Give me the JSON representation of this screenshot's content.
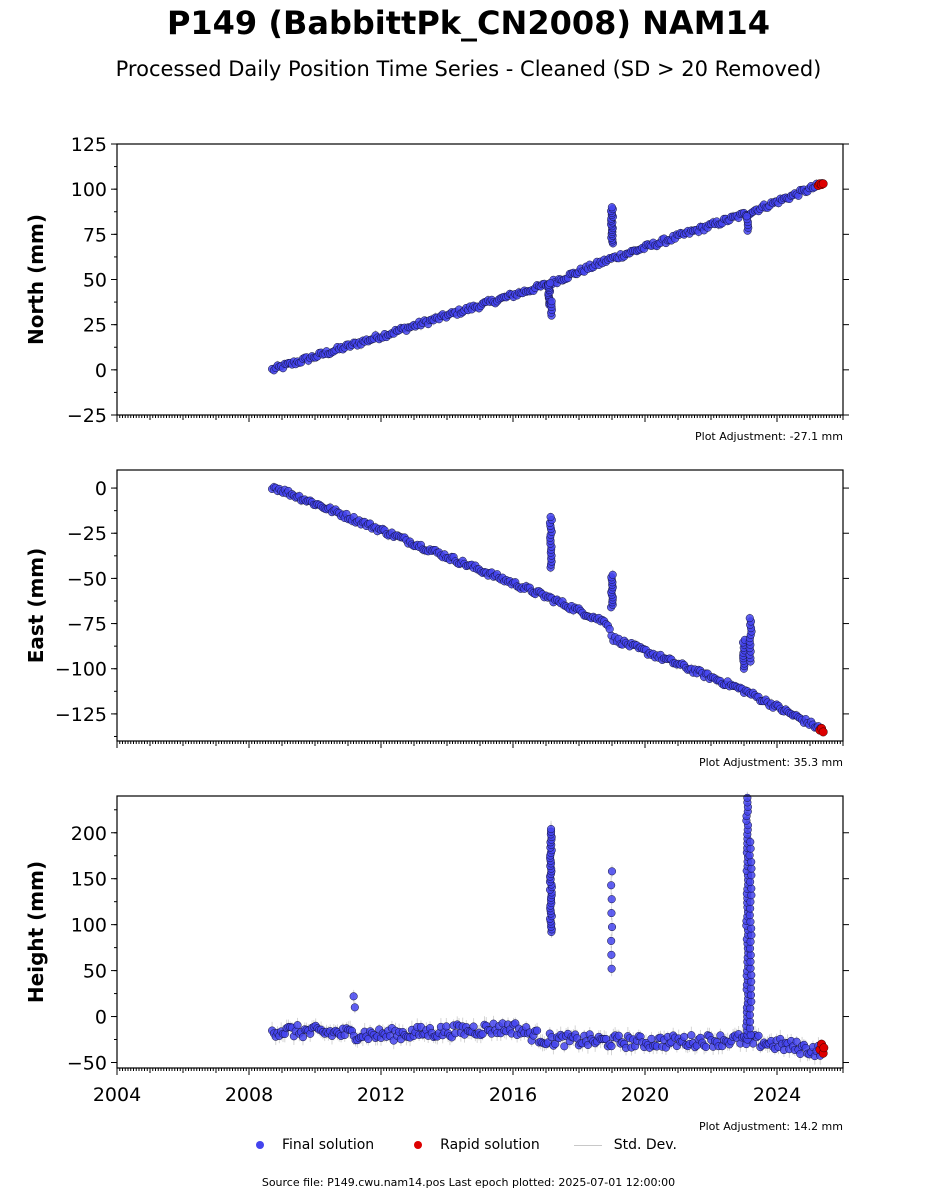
{
  "header": {
    "title": "P149 (BabbittPk_CN2008) NAM14",
    "subtitle": "Processed Daily Position Time Series - Cleaned (SD > 20 Removed)"
  },
  "legend": {
    "final": "Final solution",
    "rapid": "Rapid solution",
    "std": "Std. Dev."
  },
  "footer": {
    "source": "Source file: P149.cwu.nam14.pos  Last epoch plotted: 2025-07-01 12:00:00"
  },
  "colors": {
    "final": "#4444ee",
    "rapid": "#dd0000",
    "std": "#888888"
  },
  "chart_data": [
    {
      "type": "scatter",
      "ylabel": "North (mm)",
      "xlim": [
        2004,
        2026
      ],
      "ylim": [
        -25,
        125
      ],
      "yticks": [
        -25,
        0,
        25,
        50,
        75,
        100,
        125
      ],
      "adjustment": "Plot Adjustment: -27.1 mm",
      "trend": [
        [
          2008.7,
          0
        ],
        [
          2017.0,
          47
        ],
        [
          2018.9,
          61
        ],
        [
          2023.0,
          86
        ],
        [
          2025.4,
          103
        ]
      ],
      "anomalies": [
        {
          "x": 2017.1,
          "y": [
            36,
            48
          ],
          "n": 14
        },
        {
          "x": 2017.15,
          "y": [
            30,
            38
          ],
          "n": 6
        },
        {
          "x": 2019.0,
          "y": [
            70,
            90
          ],
          "n": 20
        },
        {
          "x": 2023.1,
          "y": [
            77,
            85
          ],
          "n": 6
        }
      ],
      "rapid": [
        [
          2025.25,
          102
        ],
        [
          2025.3,
          103
        ],
        [
          2025.35,
          102.5
        ],
        [
          2025.4,
          103
        ]
      ]
    },
    {
      "type": "scatter",
      "ylabel": "East (mm)",
      "xlim": [
        2004,
        2026
      ],
      "ylim": [
        -140,
        10
      ],
      "yticks": [
        -125,
        -100,
        -75,
        -50,
        -25,
        0
      ],
      "adjustment": "Plot Adjustment: 35.3 mm",
      "trend": [
        [
          2008.7,
          1
        ],
        [
          2017.0,
          -60
        ],
        [
          2018.9,
          -75
        ],
        [
          2019.0,
          -83
        ],
        [
          2023.0,
          -112
        ],
        [
          2025.4,
          -134
        ]
      ],
      "anomalies": [
        {
          "x": 2017.15,
          "y": [
            -44,
            -16
          ],
          "n": 18
        },
        {
          "x": 2019.0,
          "y": [
            -66,
            -48
          ],
          "n": 14
        },
        {
          "x": 2023.0,
          "y": [
            -100,
            -84
          ],
          "n": 12
        },
        {
          "x": 2023.2,
          "y": [
            -96,
            -72
          ],
          "n": 14
        }
      ],
      "rapid": [
        [
          2025.3,
          -134
        ],
        [
          2025.35,
          -133
        ],
        [
          2025.4,
          -135
        ]
      ]
    },
    {
      "type": "scatter",
      "ylabel": "Height (mm)",
      "xlim": [
        2004,
        2026
      ],
      "ylim": [
        -56,
        240
      ],
      "yticks": [
        -50,
        0,
        50,
        100,
        150,
        200
      ],
      "xticks": [
        "2004",
        "2008",
        "2012",
        "2016",
        "2020",
        "2024"
      ],
      "adjustment": "Plot Adjustment: 14.2 mm",
      "trend": [
        [
          2008.7,
          -15
        ],
        [
          2012.0,
          -20
        ],
        [
          2016.0,
          -12
        ],
        [
          2017.0,
          -25
        ],
        [
          2020.0,
          -28
        ],
        [
          2023.0,
          -25
        ],
        [
          2025.4,
          -38
        ]
      ],
      "anomalies": [
        {
          "x": 2011.2,
          "y": [
            10,
            22
          ],
          "n": 2
        },
        {
          "x": 2017.15,
          "y": [
            92,
            204
          ],
          "n": 40
        },
        {
          "x": 2019.0,
          "y": [
            52,
            158
          ],
          "n": 8
        },
        {
          "x": 2023.1,
          "y": [
            -30,
            238
          ],
          "n": 55
        },
        {
          "x": 2023.2,
          "y": [
            -20,
            190
          ],
          "n": 30
        }
      ],
      "rapid": [
        [
          2025.3,
          -36
        ],
        [
          2025.35,
          -30
        ],
        [
          2025.4,
          -40
        ],
        [
          2025.42,
          -34
        ]
      ]
    }
  ]
}
